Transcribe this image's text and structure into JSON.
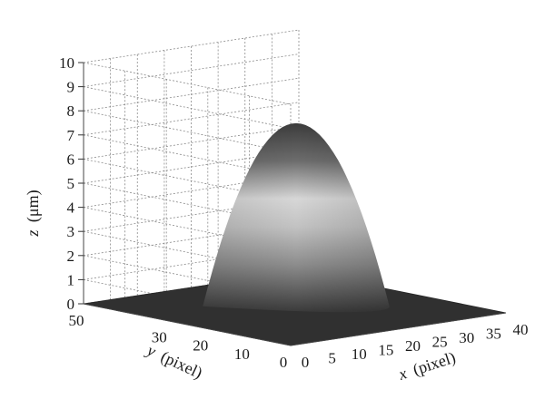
{
  "chart_data": {
    "type": "surface3d",
    "title": "",
    "colormap": "gray",
    "xlabel_var": "x",
    "xlabel_unit": "(pixel)",
    "ylabel_var": "y",
    "ylabel_unit": "(pixel)",
    "zlabel_var": "z",
    "zlabel_unit": "(μm)",
    "xlim": [
      0,
      40
    ],
    "ylim": [
      0,
      50
    ],
    "zlim": [
      0,
      10
    ],
    "x_ticks": [
      "0",
      "5",
      "10",
      "15",
      "20",
      "25",
      "30",
      "35",
      "40"
    ],
    "y_ticks": [
      "0",
      "10",
      "20",
      "30",
      "50"
    ],
    "z_ticks": [
      "0",
      "1",
      "2",
      "3",
      "4",
      "5",
      "6",
      "7",
      "8",
      "9",
      "10"
    ],
    "grid": true,
    "surface": {
      "shape": "paraboloid dome",
      "center_x": 20,
      "center_y": 25,
      "base_radius": 14,
      "peak_z": 8.5,
      "base_z": 0
    }
  }
}
